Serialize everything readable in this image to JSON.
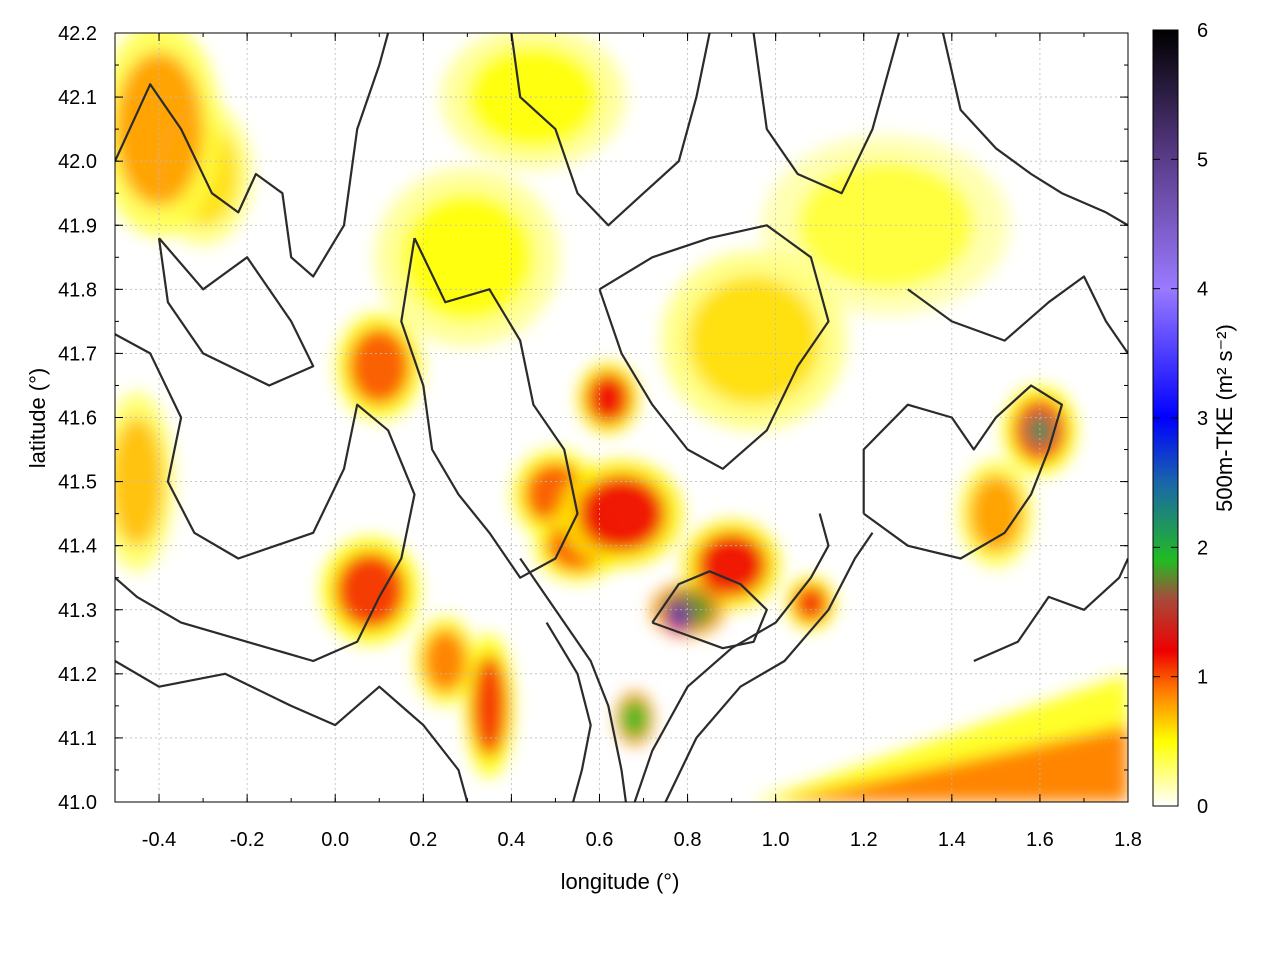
{
  "chart_data": {
    "type": "heatmap",
    "xlabel": "longitude (°)",
    "ylabel": "latitude (°)",
    "colorbar_label": "500m-TKE (m² s⁻²)",
    "xlim": [
      -0.5,
      1.8
    ],
    "ylim": [
      41.0,
      42.2
    ],
    "xticks": [
      -0.4,
      -0.2,
      0.0,
      0.2,
      0.4,
      0.6,
      0.8,
      1.0,
      1.2,
      1.4,
      1.6,
      1.8
    ],
    "xtick_labels": [
      "-0.4",
      "-0.2",
      "0.0",
      "0.2",
      "0.4",
      "0.6",
      "0.8",
      "1.0",
      "1.2",
      "1.4",
      "1.6",
      "1.8"
    ],
    "yticks": [
      41.0,
      41.1,
      41.2,
      41.3,
      41.4,
      41.5,
      41.6,
      41.7,
      41.8,
      41.9,
      42.0,
      42.1,
      42.2
    ],
    "ytick_labels": [
      "41.0",
      "41.1",
      "41.2",
      "41.3",
      "41.4",
      "41.5",
      "41.6",
      "41.7",
      "41.8",
      "41.9",
      "42.0",
      "42.1",
      "42.2"
    ],
    "colorbar": {
      "range": [
        0,
        6
      ],
      "ticks": [
        0,
        1,
        2,
        3,
        4,
        5,
        6
      ],
      "tick_labels": [
        "0",
        "1",
        "2",
        "3",
        "4",
        "5",
        "6"
      ],
      "stops": [
        {
          "v": 0.0,
          "color": "#ffffff"
        },
        {
          "v": 0.5,
          "color": "#ffff00"
        },
        {
          "v": 0.9,
          "color": "#ff7800"
        },
        {
          "v": 1.2,
          "color": "#ee0000"
        },
        {
          "v": 1.6,
          "color": "#a84a3a"
        },
        {
          "v": 1.9,
          "color": "#22bb22"
        },
        {
          "v": 2.5,
          "color": "#1a66aa"
        },
        {
          "v": 3.0,
          "color": "#0000ff"
        },
        {
          "v": 4.0,
          "color": "#9a7aff"
        },
        {
          "v": 5.0,
          "color": "#5a3c8a"
        },
        {
          "v": 6.0,
          "color": "#000000"
        }
      ]
    },
    "grid": true,
    "hotspots": [
      {
        "lon": -0.4,
        "lat": 42.05,
        "tke": 0.8,
        "rx": 0.1,
        "ry": 0.12
      },
      {
        "lon": -0.3,
        "lat": 41.98,
        "tke": 0.6,
        "rx": 0.08,
        "ry": 0.08
      },
      {
        "lon": -0.45,
        "lat": 41.5,
        "tke": 0.7,
        "rx": 0.06,
        "ry": 0.1
      },
      {
        "lon": 0.1,
        "lat": 41.68,
        "tke": 1.0,
        "rx": 0.07,
        "ry": 0.06
      },
      {
        "lon": 0.08,
        "lat": 41.33,
        "tke": 1.1,
        "rx": 0.08,
        "ry": 0.06
      },
      {
        "lon": 0.25,
        "lat": 41.22,
        "tke": 0.9,
        "rx": 0.05,
        "ry": 0.05
      },
      {
        "lon": 0.35,
        "lat": 41.15,
        "tke": 1.1,
        "rx": 0.04,
        "ry": 0.08
      },
      {
        "lon": 0.5,
        "lat": 41.48,
        "tke": 1.0,
        "rx": 0.07,
        "ry": 0.05
      },
      {
        "lon": 0.62,
        "lat": 41.63,
        "tke": 1.2,
        "rx": 0.05,
        "ry": 0.04
      },
      {
        "lon": 0.65,
        "lat": 41.45,
        "tke": 1.2,
        "rx": 0.1,
        "ry": 0.06
      },
      {
        "lon": 0.55,
        "lat": 41.4,
        "tke": 1.0,
        "rx": 0.07,
        "ry": 0.04
      },
      {
        "lon": 0.8,
        "lat": 41.3,
        "tke": 1.8,
        "rx": 0.06,
        "ry": 0.03
      },
      {
        "lon": 0.78,
        "lat": 41.29,
        "tke": 2.7,
        "rx": 0.02,
        "ry": 0.02
      },
      {
        "lon": 0.9,
        "lat": 41.37,
        "tke": 1.2,
        "rx": 0.08,
        "ry": 0.05
      },
      {
        "lon": 0.68,
        "lat": 41.13,
        "tke": 1.9,
        "rx": 0.03,
        "ry": 0.03
      },
      {
        "lon": 1.08,
        "lat": 41.31,
        "tke": 1.1,
        "rx": 0.04,
        "ry": 0.03
      },
      {
        "lon": 1.6,
        "lat": 41.58,
        "tke": 2.2,
        "rx": 0.03,
        "ry": 0.025
      },
      {
        "lon": 1.6,
        "lat": 41.58,
        "tke": 1.1,
        "rx": 0.06,
        "ry": 0.05
      },
      {
        "lon": 1.5,
        "lat": 41.45,
        "tke": 0.8,
        "rx": 0.06,
        "ry": 0.06
      },
      {
        "lon": 0.95,
        "lat": 41.72,
        "tke": 0.6,
        "rx": 0.15,
        "ry": 0.1
      },
      {
        "lon": 0.3,
        "lat": 41.85,
        "tke": 0.5,
        "rx": 0.15,
        "ry": 0.1
      },
      {
        "lon": 1.25,
        "lat": 41.9,
        "tke": 0.4,
        "rx": 0.2,
        "ry": 0.1
      },
      {
        "lon": 0.45,
        "lat": 42.1,
        "tke": 0.5,
        "rx": 0.15,
        "ry": 0.08
      }
    ],
    "coastal_band": {
      "from_lon": 0.95,
      "from_lat": 41.0,
      "to_lon": 1.8,
      "to_lat": 41.18,
      "tke": 0.9
    },
    "contours": [
      [
        [
          -0.5,
          42.0
        ],
        [
          -0.42,
          42.12
        ],
        [
          -0.35,
          42.05
        ],
        [
          -0.28,
          41.95
        ],
        [
          -0.22,
          41.92
        ],
        [
          -0.18,
          41.98
        ],
        [
          -0.12,
          41.95
        ],
        [
          -0.1,
          41.85
        ],
        [
          -0.05,
          41.82
        ],
        [
          0.02,
          41.9
        ],
        [
          0.05,
          42.05
        ],
        [
          0.1,
          42.15
        ],
        [
          0.12,
          42.2
        ]
      ],
      [
        [
          -0.4,
          41.88
        ],
        [
          -0.3,
          41.8
        ],
        [
          -0.2,
          41.85
        ],
        [
          -0.1,
          41.75
        ],
        [
          -0.05,
          41.68
        ],
        [
          -0.15,
          41.65
        ],
        [
          -0.3,
          41.7
        ],
        [
          -0.38,
          41.78
        ],
        [
          -0.4,
          41.88
        ]
      ],
      [
        [
          -0.5,
          41.73
        ],
        [
          -0.42,
          41.7
        ],
        [
          -0.35,
          41.6
        ],
        [
          -0.38,
          41.5
        ],
        [
          -0.32,
          41.42
        ],
        [
          -0.22,
          41.38
        ],
        [
          -0.05,
          41.42
        ],
        [
          0.02,
          41.52
        ],
        [
          0.05,
          41.62
        ],
        [
          0.12,
          41.58
        ],
        [
          0.18,
          41.48
        ],
        [
          0.15,
          41.38
        ],
        [
          0.1,
          41.32
        ],
        [
          0.05,
          41.25
        ],
        [
          -0.05,
          41.22
        ],
        [
          -0.2,
          41.25
        ],
        [
          -0.35,
          41.28
        ],
        [
          -0.45,
          41.32
        ],
        [
          -0.5,
          41.35
        ]
      ],
      [
        [
          -0.5,
          41.22
        ],
        [
          -0.4,
          41.18
        ],
        [
          -0.25,
          41.2
        ],
        [
          -0.1,
          41.15
        ],
        [
          0.0,
          41.12
        ],
        [
          0.1,
          41.18
        ],
        [
          0.2,
          41.12
        ],
        [
          0.28,
          41.05
        ],
        [
          0.3,
          41.0
        ]
      ],
      [
        [
          0.18,
          41.88
        ],
        [
          0.25,
          41.78
        ],
        [
          0.35,
          41.8
        ],
        [
          0.42,
          41.72
        ],
        [
          0.45,
          41.62
        ],
        [
          0.52,
          41.55
        ],
        [
          0.55,
          41.45
        ],
        [
          0.5,
          41.38
        ],
        [
          0.42,
          41.35
        ],
        [
          0.35,
          41.42
        ],
        [
          0.28,
          41.48
        ],
        [
          0.22,
          41.55
        ],
        [
          0.2,
          41.65
        ],
        [
          0.15,
          41.75
        ],
        [
          0.18,
          41.88
        ]
      ],
      [
        [
          0.4,
          42.2
        ],
        [
          0.42,
          42.1
        ],
        [
          0.5,
          42.05
        ],
        [
          0.55,
          41.95
        ],
        [
          0.62,
          41.9
        ],
        [
          0.7,
          41.95
        ],
        [
          0.78,
          42.0
        ],
        [
          0.82,
          42.1
        ],
        [
          0.85,
          42.2
        ]
      ],
      [
        [
          0.95,
          42.2
        ],
        [
          0.98,
          42.05
        ],
        [
          1.05,
          41.98
        ],
        [
          1.15,
          41.95
        ],
        [
          1.22,
          42.05
        ],
        [
          1.28,
          42.2
        ]
      ],
      [
        [
          0.6,
          41.8
        ],
        [
          0.65,
          41.7
        ],
        [
          0.72,
          41.62
        ],
        [
          0.8,
          41.55
        ],
        [
          0.88,
          41.52
        ],
        [
          0.98,
          41.58
        ],
        [
          1.05,
          41.68
        ],
        [
          1.12,
          41.75
        ],
        [
          1.08,
          41.85
        ],
        [
          0.98,
          41.9
        ],
        [
          0.85,
          41.88
        ],
        [
          0.72,
          41.85
        ],
        [
          0.6,
          41.8
        ]
      ],
      [
        [
          0.42,
          41.38
        ],
        [
          0.5,
          41.3
        ],
        [
          0.58,
          41.22
        ],
        [
          0.62,
          41.15
        ],
        [
          0.65,
          41.05
        ],
        [
          0.66,
          41.0
        ]
      ],
      [
        [
          0.48,
          41.28
        ],
        [
          0.55,
          41.2
        ],
        [
          0.58,
          41.12
        ],
        [
          0.56,
          41.05
        ],
        [
          0.54,
          41.0
        ]
      ],
      [
        [
          0.72,
          41.28
        ],
        [
          0.78,
          41.34
        ],
        [
          0.85,
          41.36
        ],
        [
          0.92,
          41.34
        ],
        [
          0.98,
          41.3
        ],
        [
          0.95,
          41.25
        ],
        [
          0.88,
          41.24
        ],
        [
          0.8,
          41.26
        ],
        [
          0.72,
          41.28
        ]
      ],
      [
        [
          0.68,
          41.0
        ],
        [
          0.72,
          41.08
        ],
        [
          0.8,
          41.18
        ],
        [
          0.9,
          41.24
        ],
        [
          1.0,
          41.28
        ],
        [
          1.08,
          41.35
        ],
        [
          1.12,
          41.4
        ],
        [
          1.1,
          41.45
        ]
      ],
      [
        [
          0.75,
          41.0
        ],
        [
          0.82,
          41.1
        ],
        [
          0.92,
          41.18
        ],
        [
          1.02,
          41.22
        ],
        [
          1.12,
          41.3
        ],
        [
          1.18,
          41.38
        ],
        [
          1.22,
          41.42
        ]
      ],
      [
        [
          1.2,
          41.45
        ],
        [
          1.3,
          41.4
        ],
        [
          1.42,
          41.38
        ],
        [
          1.52,
          41.42
        ],
        [
          1.58,
          41.48
        ],
        [
          1.62,
          41.55
        ],
        [
          1.65,
          41.62
        ],
        [
          1.58,
          41.65
        ],
        [
          1.5,
          41.6
        ],
        [
          1.45,
          41.55
        ],
        [
          1.4,
          41.6
        ],
        [
          1.3,
          41.62
        ],
        [
          1.2,
          41.55
        ],
        [
          1.2,
          41.45
        ]
      ],
      [
        [
          1.45,
          41.22
        ],
        [
          1.55,
          41.25
        ],
        [
          1.62,
          41.32
        ],
        [
          1.7,
          41.3
        ],
        [
          1.78,
          41.35
        ],
        [
          1.8,
          41.38
        ]
      ],
      [
        [
          1.38,
          42.2
        ],
        [
          1.42,
          42.08
        ],
        [
          1.5,
          42.02
        ],
        [
          1.58,
          41.98
        ],
        [
          1.65,
          41.95
        ],
        [
          1.75,
          41.92
        ],
        [
          1.8,
          41.9
        ]
      ],
      [
        [
          1.3,
          41.8
        ],
        [
          1.4,
          41.75
        ],
        [
          1.52,
          41.72
        ],
        [
          1.62,
          41.78
        ],
        [
          1.7,
          41.82
        ],
        [
          1.75,
          41.75
        ],
        [
          1.8,
          41.7
        ]
      ]
    ]
  }
}
